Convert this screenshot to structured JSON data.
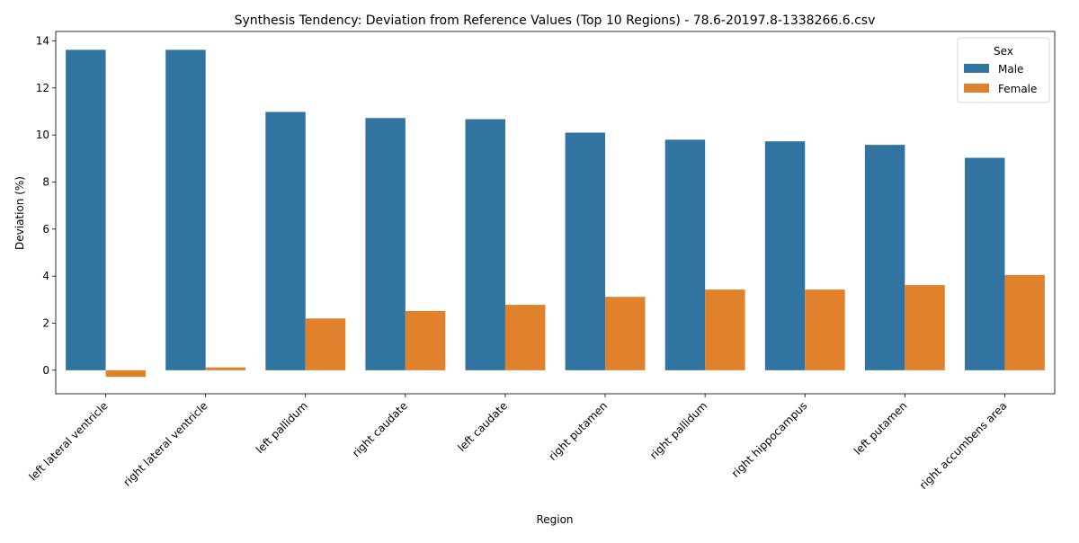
{
  "chart_data": {
    "type": "bar",
    "title": "Synthesis Tendency: Deviation from Reference Values (Top 10 Regions) - 78.6-20197.8-1338266.6.csv",
    "xlabel": "Region",
    "ylabel": "Deviation (%)",
    "categories": [
      "left lateral ventricle",
      "right lateral ventricle",
      "left pallidum",
      "right caudate",
      "left caudate",
      "right putamen",
      "right pallidum",
      "right hippocampus",
      "left putamen",
      "right accumbens area"
    ],
    "series": [
      {
        "name": "Male",
        "color": "#3274a1",
        "values": [
          13.62,
          13.62,
          10.98,
          10.72,
          10.67,
          10.1,
          9.8,
          9.73,
          9.58,
          9.03
        ]
      },
      {
        "name": "Female",
        "color": "#e1812c",
        "values": [
          -0.28,
          0.12,
          2.2,
          2.52,
          2.78,
          3.12,
          3.43,
          3.43,
          3.62,
          4.05
        ]
      }
    ],
    "ylim": [
      -1.0,
      14.4
    ],
    "yticks": [
      0,
      2,
      4,
      6,
      8,
      10,
      12,
      14
    ],
    "legend": {
      "title": "Sex",
      "placement": "top-right"
    },
    "grid": false
  }
}
